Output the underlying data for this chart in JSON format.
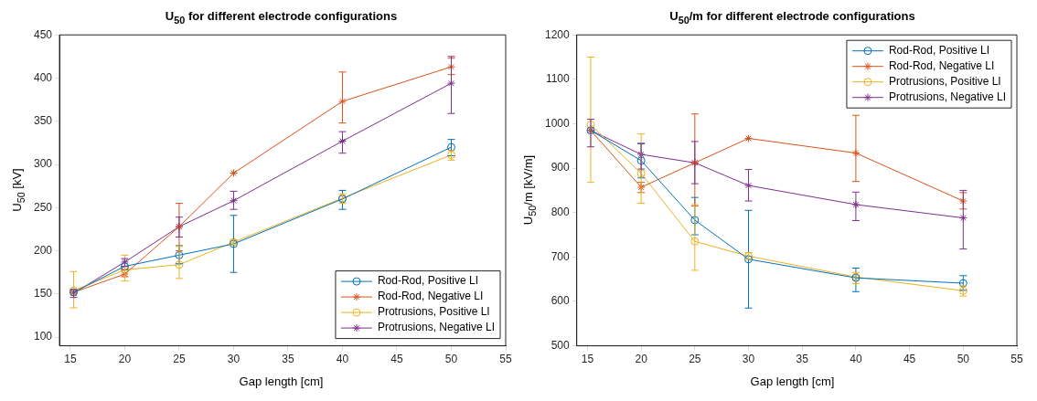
{
  "chart_data": [
    {
      "type": "line",
      "title": "U$_{50}$ for different electrode configurations",
      "xlabel": "Gap length [cm]",
      "ylabel": "U$_{50}$ [kV]",
      "x": [
        15.3,
        20,
        25,
        30,
        40,
        50
      ],
      "xlim": [
        14,
        55
      ],
      "xticks": [
        15,
        20,
        25,
        30,
        35,
        40,
        45,
        50,
        55
      ],
      "ylim": [
        90,
        450
      ],
      "yticks": [
        100,
        150,
        200,
        250,
        300,
        350,
        400,
        450
      ],
      "legend": "bottom right",
      "grid": false,
      "series": [
        {
          "name": "Rod-Rod, Positive LI",
          "color": "#0072bd",
          "marker": "circle",
          "values": [
            152,
            182,
            195,
            208,
            260,
            320
          ],
          "errors": [
            null,
            null,
            [
              185,
              206
            ],
            [
              175,
              241
            ],
            [
              248,
              270
            ],
            [
              310,
              329
            ]
          ]
        },
        {
          "name": "Rod-Rod, Negative LI",
          "color": "#d95319",
          "marker": "cross",
          "values": [
            152,
            173,
            228,
            290,
            373,
            413
          ],
          "errors": [
            null,
            [
              170,
              178
            ],
            [
              200,
              255
            ],
            null,
            [
              348,
              407
            ],
            [
              404,
              423
            ]
          ]
        },
        {
          "name": "Protrusions, Positive LI",
          "color": "#edb120",
          "marker": "circle",
          "values": [
            154,
            178,
            184,
            210,
            261,
            311
          ],
          "errors": [
            [
              134,
              176
            ],
            [
              165,
              195
            ],
            [
              168,
              205
            ],
            [
              207,
              213
            ],
            [
              255,
              266
            ],
            [
              305,
              316
            ]
          ]
        },
        {
          "name": "Protrusions, Negative LI",
          "color": "#7e2f8e",
          "marker": "cross",
          "values": [
            151,
            187,
            228,
            258,
            327,
            394
          ],
          "errors": [
            [
              146,
              155
            ],
            [
              182,
              191
            ],
            [
              216,
              239
            ],
            [
              248,
              269
            ],
            [
              313,
              338
            ],
            [
              359,
              425
            ]
          ]
        }
      ]
    },
    {
      "type": "line",
      "title": "U$_{50}$/m for different electrode configurations",
      "xlabel": "Gap length [cm]",
      "ylabel": "U$_{50}$/m [kV/m]",
      "x": [
        15.3,
        20,
        25,
        30,
        40,
        50
      ],
      "xlim": [
        14,
        55
      ],
      "xticks": [
        15,
        20,
        25,
        30,
        35,
        40,
        45,
        50,
        55
      ],
      "ylim": [
        500,
        1200
      ],
      "yticks": [
        500,
        600,
        700,
        800,
        900,
        1000,
        1100,
        1200
      ],
      "legend": "top right",
      "grid": false,
      "series": [
        {
          "name": "Rod-Rod, Positive LI",
          "color": "#0072bd",
          "marker": "circle",
          "values": [
            985,
            917,
            783,
            695,
            653,
            641
          ],
          "errors": [
            null,
            [
              878,
              956
            ],
            [
              750,
              834
            ],
            [
              585,
              805
            ],
            [
              622,
              675
            ],
            [
              625,
              658
            ]
          ]
        },
        {
          "name": "Rod-Rod, Negative LI",
          "color": "#d95319",
          "marker": "cross",
          "values": [
            985,
            857,
            912,
            967,
            934,
            826
          ],
          "errors": [
            null,
            [
              845,
              868
            ],
            [
              815,
              1022
            ],
            null,
            [
              870,
              1019
            ],
            [
              808,
              845
            ]
          ]
        },
        {
          "name": "Protrusions, Positive LI",
          "color": "#edb120",
          "marker": "circle",
          "values": [
            998,
            888,
            735,
            702,
            655,
            624
          ],
          "errors": [
            [
              868,
              1150
            ],
            [
              821,
              977
            ],
            [
              670,
              818
            ],
            [
              695,
              710
            ],
            [
              640,
              665
            ],
            [
              612,
              635
            ]
          ]
        },
        {
          "name": "Protrusions, Negative LI",
          "color": "#7e2f8e",
          "marker": "cross",
          "values": [
            985,
            931,
            912,
            861,
            818,
            788
          ],
          "errors": [
            [
              948,
              1010
            ],
            [
              898,
              955
            ],
            [
              865,
              960
            ],
            [
              826,
              897
            ],
            [
              782,
              846
            ],
            [
              718,
              850
            ]
          ]
        }
      ]
    }
  ]
}
